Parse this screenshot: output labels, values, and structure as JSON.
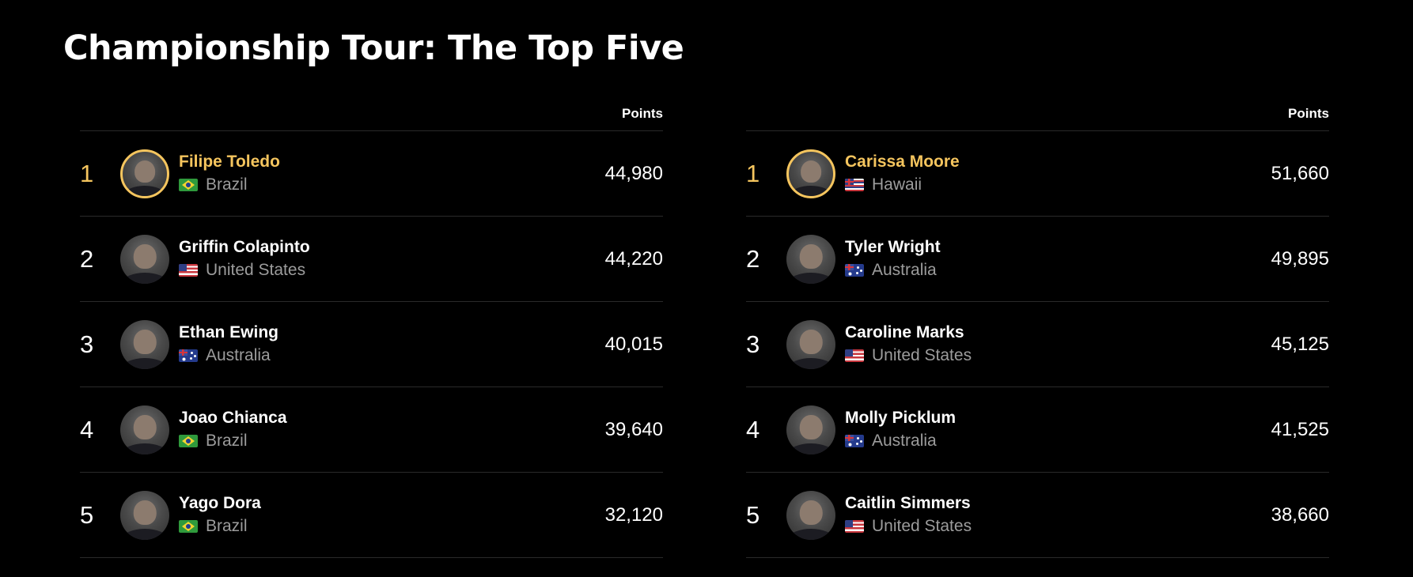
{
  "page_title": "Championship Tour: The Top Five",
  "colors": {
    "background": "#000000",
    "leader_accent": "#f5c55e",
    "country_text": "#9c9c9c",
    "divider": "#2a2a2a"
  },
  "men": {
    "points_header": "Points",
    "rows": [
      {
        "rank": "1",
        "name": "Filipe Toledo",
        "country": "Brazil",
        "flag_icon": "brazil-flag-icon",
        "points": "44,980"
      },
      {
        "rank": "2",
        "name": "Griffin Colapinto",
        "country": "United States",
        "flag_icon": "usa-flag-icon",
        "points": "44,220"
      },
      {
        "rank": "3",
        "name": "Ethan Ewing",
        "country": "Australia",
        "flag_icon": "australia-flag-icon",
        "points": "40,015"
      },
      {
        "rank": "4",
        "name": "Joao Chianca",
        "country": "Brazil",
        "flag_icon": "brazil-flag-icon",
        "points": "39,640"
      },
      {
        "rank": "5",
        "name": "Yago Dora",
        "country": "Brazil",
        "flag_icon": "brazil-flag-icon",
        "points": "32,120"
      }
    ]
  },
  "women": {
    "points_header": "Points",
    "rows": [
      {
        "rank": "1",
        "name": "Carissa Moore",
        "country": "Hawaii",
        "flag_icon": "hawaii-flag-icon",
        "points": "51,660"
      },
      {
        "rank": "2",
        "name": "Tyler Wright",
        "country": "Australia",
        "flag_icon": "australia-flag-icon",
        "points": "49,895"
      },
      {
        "rank": "3",
        "name": "Caroline Marks",
        "country": "United States",
        "flag_icon": "usa-flag-icon",
        "points": "45,125"
      },
      {
        "rank": "4",
        "name": "Molly Picklum",
        "country": "Australia",
        "flag_icon": "australia-flag-icon",
        "points": "41,525"
      },
      {
        "rank": "5",
        "name": "Caitlin Simmers",
        "country": "United States",
        "flag_icon": "usa-flag-icon",
        "points": "38,660"
      }
    ]
  }
}
